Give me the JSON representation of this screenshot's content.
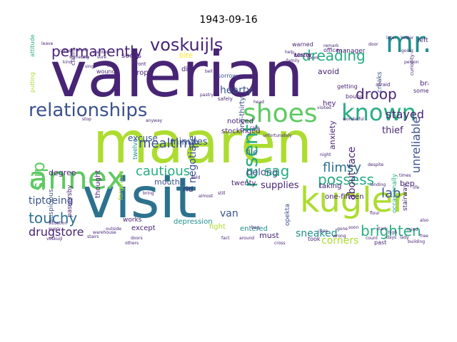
{
  "title": "1943-09-16",
  "colors": {
    "purple": "#482475",
    "indigo": "#3b528b",
    "blue": "#2c728e",
    "teal": "#21908d",
    "green": "#27ad81",
    "lime": "#5ec962",
    "yellowgreen": "#addc30",
    "yellow": "#fde725"
  },
  "words": [
    {
      "text": "valerian",
      "color": "purple"
    },
    {
      "text": "maaren",
      "color": "yellowgreen"
    },
    {
      "text": "visit",
      "color": "blue"
    },
    {
      "text": "kugler",
      "color": "yellowgreen"
    },
    {
      "text": "annex",
      "color": "lime"
    },
    {
      "text": "mr.",
      "color": "teal"
    },
    {
      "text": "shoes",
      "color": "lime"
    },
    {
      "text": "known",
      "color": "green"
    },
    {
      "text": "relationships",
      "color": "indigo"
    },
    {
      "text": "voskuijls",
      "color": "purple"
    },
    {
      "text": "permanently",
      "color": "purple"
    },
    {
      "text": "dreading",
      "color": "green"
    },
    {
      "text": "droop",
      "color": "purple"
    },
    {
      "text": "resent",
      "color": "green"
    },
    {
      "text": "slip",
      "color": "lime"
    },
    {
      "text": "possess",
      "color": "green"
    },
    {
      "text": "brighten",
      "color": "green"
    },
    {
      "text": "touchy",
      "color": "blue"
    },
    {
      "text": "cautious",
      "color": "green"
    },
    {
      "text": "sag",
      "color": "green"
    },
    {
      "text": "mealtime",
      "color": "indigo"
    },
    {
      "text": "negotiate",
      "color": "indigo"
    },
    {
      "text": "unreliable",
      "color": "indigo"
    },
    {
      "text": "about-face",
      "color": "purple"
    },
    {
      "text": "lab",
      "color": "indigo"
    },
    {
      "text": "stayed",
      "color": "purple"
    },
    {
      "text": "flimsy",
      "color": "blue"
    },
    {
      "text": "hearty",
      "color": "indigo"
    },
    {
      "text": "drugstore",
      "color": "purple"
    },
    {
      "text": "tiptoeing",
      "color": "indigo"
    },
    {
      "text": "sneaked",
      "color": "teal"
    },
    {
      "text": "corners",
      "color": "yellowgreen"
    },
    {
      "text": "supplies",
      "color": "purple"
    },
    {
      "text": "belong",
      "color": "indigo"
    },
    {
      "text": "thief",
      "color": "purple"
    },
    {
      "text": "minutes",
      "color": "indigo"
    },
    {
      "text": "excuse",
      "color": "indigo"
    },
    {
      "text": "one-thirty",
      "color": "indigo"
    },
    {
      "text": "file",
      "color": "blue"
    },
    {
      "text": "anxiety",
      "color": "purple"
    },
    {
      "text": "noticed",
      "color": "purple"
    },
    {
      "text": "stockinged",
      "color": "purple"
    },
    {
      "text": "entered",
      "color": "teal"
    },
    {
      "text": "twenty",
      "color": "purple"
    },
    {
      "text": "taking",
      "color": "purple"
    },
    {
      "text": "degree",
      "color": "purple"
    },
    {
      "text": "thought",
      "color": "purple"
    },
    {
      "text": "forgotten",
      "color": "yellowgreen"
    },
    {
      "text": "twelve",
      "color": "teal"
    },
    {
      "text": "depression",
      "color": "teal"
    },
    {
      "text": "fight",
      "color": "yellowgreen"
    },
    {
      "text": "one-fifteen",
      "color": "purple"
    },
    {
      "text": "stairway",
      "color": "purple"
    },
    {
      "text": "occasionally",
      "color": "green"
    },
    {
      "text": "suspicious",
      "color": "indigo"
    },
    {
      "text": "passersby",
      "color": "purple"
    },
    {
      "text": "van",
      "color": "indigo"
    },
    {
      "text": "must",
      "color": "purple"
    },
    {
      "text": "rid",
      "color": "purple"
    },
    {
      "text": "opekta",
      "color": "indigo"
    },
    {
      "text": "mouths",
      "color": "indigo"
    },
    {
      "text": "except",
      "color": "purple"
    },
    {
      "text": "works",
      "color": "purple"
    },
    {
      "text": "bep",
      "color": "purple"
    },
    {
      "text": "avoid",
      "color": "purple"
    },
    {
      "text": "die",
      "color": "purple"
    },
    {
      "text": "drops",
      "color": "purple"
    },
    {
      "text": "bite",
      "color": "yellow"
    },
    {
      "text": "socks",
      "color": "purple"
    },
    {
      "text": "hey",
      "color": "purple"
    },
    {
      "text": "manager",
      "color": "purple"
    },
    {
      "text": "warned",
      "color": "purple"
    },
    {
      "text": "terror",
      "color": "purple"
    },
    {
      "text": "creaks",
      "color": "indigo"
    },
    {
      "text": "brains",
      "color": "purple"
    },
    {
      "text": "winter",
      "color": "purple"
    },
    {
      "text": "office",
      "color": "purple"
    },
    {
      "text": "left",
      "color": "purple"
    },
    {
      "text": "curiosity",
      "color": "purple"
    },
    {
      "text": "sometimes",
      "color": "purple"
    },
    {
      "text": "claims",
      "color": "purple"
    },
    {
      "text": "attitude",
      "color": "green"
    },
    {
      "text": "putting",
      "color": "yellowgreen"
    },
    {
      "text": "sorrow",
      "color": "indigo"
    },
    {
      "text": "wound",
      "color": "purple"
    },
    {
      "text": "afraid",
      "color": "purple"
    },
    {
      "text": "getting",
      "color": "purple"
    },
    {
      "text": "bound",
      "color": "purple"
    },
    {
      "text": "took",
      "color": "purple"
    },
    {
      "text": "past",
      "color": "purple"
    },
    {
      "text": "front",
      "color": "purple"
    },
    {
      "text": "safely",
      "color": "purple"
    },
    {
      "text": "anyway",
      "color": "purple"
    },
    {
      "text": "stop",
      "color": "purple"
    },
    {
      "text": "doors",
      "color": "purple"
    },
    {
      "text": "days",
      "color": "purple"
    },
    {
      "text": "around",
      "color": "purple"
    },
    {
      "text": "building",
      "color": "purple"
    },
    {
      "text": "stairs",
      "color": "purple"
    },
    {
      "text": "family",
      "color": "purple"
    },
    {
      "text": "help",
      "color": "purple"
    },
    {
      "text": "cross",
      "color": "purple"
    },
    {
      "text": "care",
      "color": "purple"
    },
    {
      "text": "high",
      "color": "purple"
    },
    {
      "text": "start",
      "color": "purple"
    },
    {
      "text": "warehouse",
      "color": "purple"
    },
    {
      "text": "others",
      "color": "purple"
    },
    {
      "text": "voskuijl",
      "color": "purple"
    },
    {
      "text": "almost",
      "color": "purple"
    },
    {
      "text": "still",
      "color": "purple"
    },
    {
      "text": "every",
      "color": "purple"
    },
    {
      "text": "fact",
      "color": "purple"
    },
    {
      "text": "despite",
      "color": "purple"
    },
    {
      "text": "outside",
      "color": "purple"
    },
    {
      "text": "landing",
      "color": "purple"
    },
    {
      "text": "situation",
      "color": "purple"
    },
    {
      "text": "later",
      "color": "purple"
    },
    {
      "text": "better",
      "color": "purple"
    },
    {
      "text": "going",
      "color": "purple"
    },
    {
      "text": "person",
      "color": "purple"
    },
    {
      "text": "door",
      "color": "purple"
    },
    {
      "text": "corner",
      "color": "purple"
    },
    {
      "text": "wanted",
      "color": "purple"
    },
    {
      "text": "leave",
      "color": "purple"
    },
    {
      "text": "sure",
      "color": "purple"
    },
    {
      "text": "tiny",
      "color": "purple"
    },
    {
      "text": "sing",
      "color": "purple"
    },
    {
      "text": "cars",
      "color": "purple"
    },
    {
      "text": "kind",
      "color": "purple"
    },
    {
      "text": "wrong",
      "color": "purple"
    },
    {
      "text": "soon",
      "color": "purple"
    },
    {
      "text": "case",
      "color": "purple"
    },
    {
      "text": "someone",
      "color": "purple"
    },
    {
      "text": "whole",
      "color": "purple"
    },
    {
      "text": "nothing",
      "color": "purple"
    },
    {
      "text": "unfortunately",
      "color": "purple"
    },
    {
      "text": "remark",
      "color": "purple"
    },
    {
      "text": "wonderful",
      "color": "purple"
    },
    {
      "text": "gone",
      "color": "purple"
    },
    {
      "text": "night",
      "color": "purple"
    },
    {
      "text": "visited",
      "color": "purple"
    },
    {
      "text": "room",
      "color": "purple"
    },
    {
      "text": "bag",
      "color": "purple"
    },
    {
      "text": "count",
      "color": "purple"
    },
    {
      "text": "lady",
      "color": "purple"
    },
    {
      "text": "mind",
      "color": "purple"
    },
    {
      "text": "life",
      "color": "purple"
    },
    {
      "text": "times",
      "color": "purple"
    },
    {
      "text": "flour",
      "color": "purple"
    },
    {
      "text": "also",
      "color": "purple"
    },
    {
      "text": "free",
      "color": "purple"
    },
    {
      "text": "bring",
      "color": "purple"
    },
    {
      "text": "sold",
      "color": "purple"
    },
    {
      "text": "pastry",
      "color": "purple"
    },
    {
      "text": "bell",
      "color": "purple"
    },
    {
      "text": "head",
      "color": "purple"
    }
  ]
}
